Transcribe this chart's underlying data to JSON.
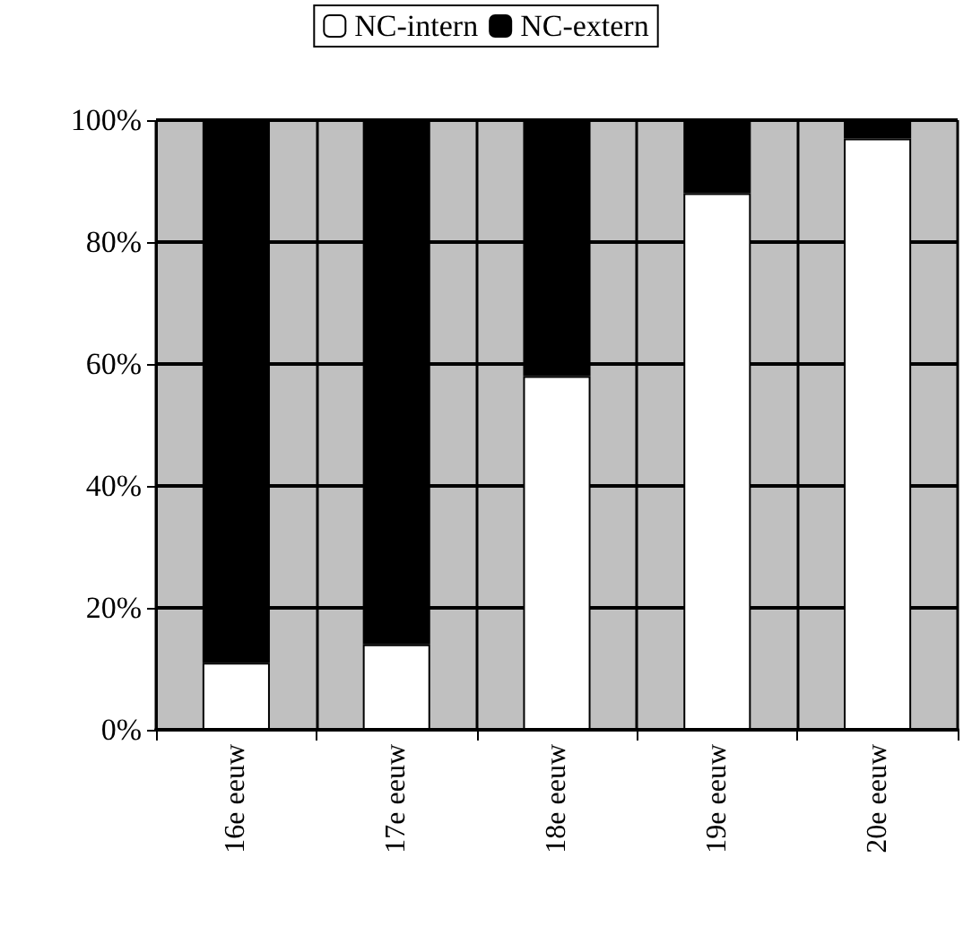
{
  "chart_data": {
    "type": "bar",
    "stacked": true,
    "categories": [
      "16e eeuw",
      "17e eeuw",
      "18e eeuw",
      "19e eeuw",
      "20e eeuw"
    ],
    "series": [
      {
        "name": "NC-intern",
        "color": "#ffffff",
        "values": [
          11,
          14,
          58,
          88,
          97
        ]
      },
      {
        "name": "NC-extern",
        "color": "#000000",
        "values": [
          89,
          86,
          42,
          12,
          3
        ]
      }
    ],
    "ylim": [
      0,
      100
    ],
    "yticks": [
      {
        "value": 0,
        "label": "0%"
      },
      {
        "value": 20,
        "label": "20%"
      },
      {
        "value": 40,
        "label": "40%"
      },
      {
        "value": 60,
        "label": "60%"
      },
      {
        "value": 80,
        "label": "80%"
      },
      {
        "value": 100,
        "label": "100%"
      }
    ],
    "grid": true,
    "legend": "top"
  }
}
